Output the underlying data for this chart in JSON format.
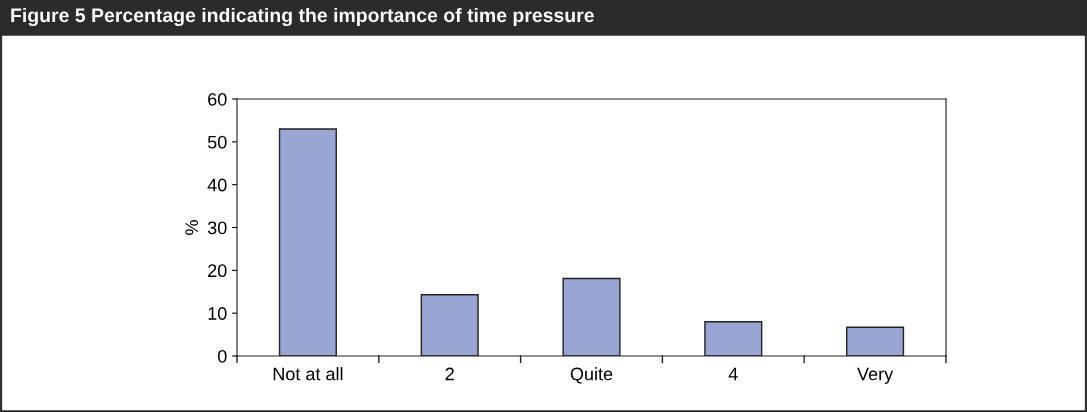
{
  "chart_data": {
    "type": "bar",
    "title": "Figure 5 Percentage indicating the importance of time pressure",
    "categories": [
      "Not at all",
      "2",
      "Quite",
      "4",
      "Very"
    ],
    "values": [
      53,
      14.3,
      18.1,
      8,
      6.7
    ],
    "color": "#99a6d4",
    "ylabel": "%",
    "ylim": [
      0,
      60
    ],
    "yticks": [
      0,
      10,
      20,
      30,
      40,
      50,
      60
    ],
    "grid": false
  }
}
